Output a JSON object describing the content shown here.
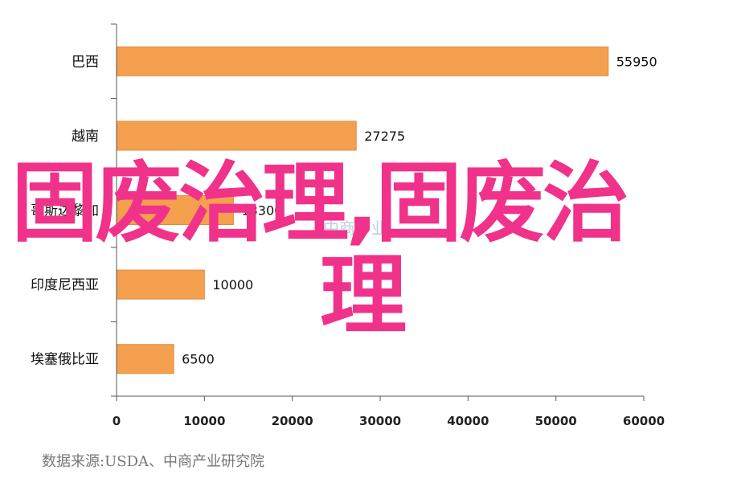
{
  "chart_data": {
    "type": "bar",
    "orientation": "horizontal",
    "categories": [
      "巴西",
      "越南",
      "哥斯达黎加",
      "印度尼西亚",
      "埃塞俄比亚"
    ],
    "values": [
      55950,
      27275,
      13300,
      10000,
      6500
    ],
    "value_labels": [
      "55950",
      "27275",
      "13300",
      "10000",
      "6500"
    ],
    "xlim": [
      0,
      60000
    ],
    "x_ticks": [
      0,
      10000,
      20000,
      30000,
      40000,
      50000,
      60000
    ],
    "x_tick_labels": [
      "0",
      "10000",
      "20000",
      "30000",
      "40000",
      "50000",
      "60000"
    ],
    "grid": false,
    "colors": {
      "bar": "#f5a04f",
      "bar_edge": "#e08a3c",
      "axis": "#555555"
    }
  },
  "source_text": "数据来源:USDA、中商产业研究院",
  "watermark": {
    "line1": "固废治理,固废治",
    "line2": "理",
    "color": "#f0328a",
    "faint_logo_text": "中商产业"
  }
}
